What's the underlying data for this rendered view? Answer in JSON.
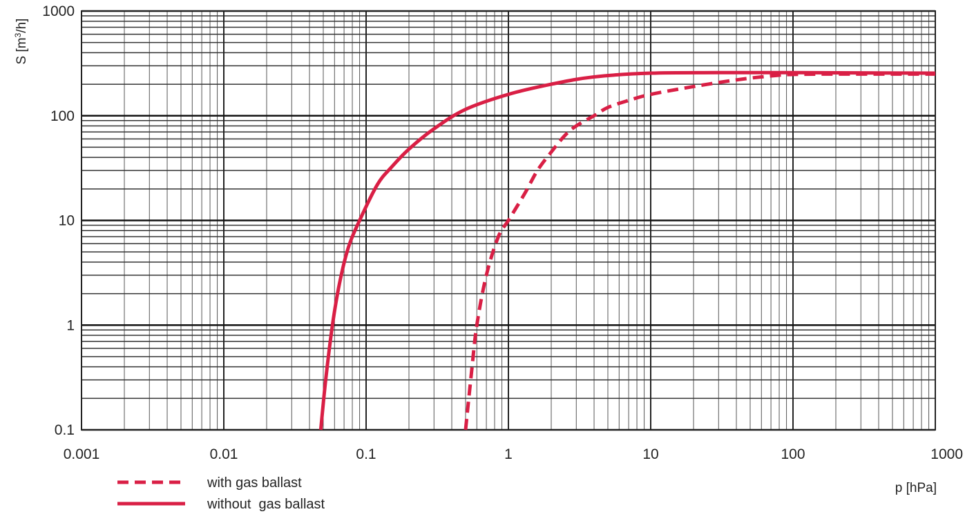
{
  "chart_data": {
    "type": "line",
    "title": "",
    "xlabel": "p [hPa]",
    "ylabel_main": "S [m",
    "ylabel_sup": "3",
    "ylabel_tail": "/h]",
    "x_scale": "log",
    "y_scale": "log",
    "xlim": [
      0.001,
      1000
    ],
    "ylim": [
      0.1,
      1000
    ],
    "grid": true,
    "x_ticks": [
      {
        "value": 0.001,
        "label": "0.001"
      },
      {
        "value": 0.01,
        "label": "0.01"
      },
      {
        "value": 0.1,
        "label": "0.1"
      },
      {
        "value": 1,
        "label": "1"
      },
      {
        "value": 10,
        "label": "10"
      },
      {
        "value": 100,
        "label": "100"
      },
      {
        "value": 1000,
        "label": "1000"
      }
    ],
    "y_ticks": [
      {
        "value": 0.1,
        "label": "0.1"
      },
      {
        "value": 1,
        "label": "1"
      },
      {
        "value": 10,
        "label": "10"
      },
      {
        "value": 100,
        "label": "100"
      },
      {
        "value": 1000,
        "label": "1000"
      }
    ],
    "legend_position": "bottom-left",
    "series": [
      {
        "name": "with gas ballast",
        "style": "dashed",
        "color": "#d91f45",
        "points": [
          [
            0.5,
            0.1
          ],
          [
            0.55,
            0.35
          ],
          [
            0.6,
            1.0
          ],
          [
            0.7,
            3.0
          ],
          [
            0.85,
            7.0
          ],
          [
            1.0,
            10
          ],
          [
            1.3,
            18
          ],
          [
            1.6,
            30
          ],
          [
            2.0,
            45
          ],
          [
            2.5,
            65
          ],
          [
            3.0,
            80
          ],
          [
            4.0,
            100
          ],
          [
            5.0,
            120
          ],
          [
            7.0,
            140
          ],
          [
            10,
            160
          ],
          [
            20,
            190
          ],
          [
            40,
            220
          ],
          [
            70,
            240
          ],
          [
            100,
            248
          ],
          [
            200,
            250
          ],
          [
            500,
            250
          ],
          [
            1000,
            250
          ]
        ]
      },
      {
        "name": "without  gas ballast",
        "style": "solid",
        "color": "#d91f45",
        "points": [
          [
            0.048,
            0.1
          ],
          [
            0.052,
            0.3
          ],
          [
            0.058,
            1.0
          ],
          [
            0.065,
            2.5
          ],
          [
            0.075,
            5.5
          ],
          [
            0.09,
            10
          ],
          [
            0.12,
            22
          ],
          [
            0.15,
            32
          ],
          [
            0.2,
            48
          ],
          [
            0.3,
            75
          ],
          [
            0.5,
            115
          ],
          [
            1.0,
            160
          ],
          [
            2.0,
            200
          ],
          [
            4.0,
            235
          ],
          [
            10,
            255
          ],
          [
            30,
            258
          ],
          [
            100,
            258
          ],
          [
            1000,
            255
          ]
        ]
      }
    ]
  }
}
